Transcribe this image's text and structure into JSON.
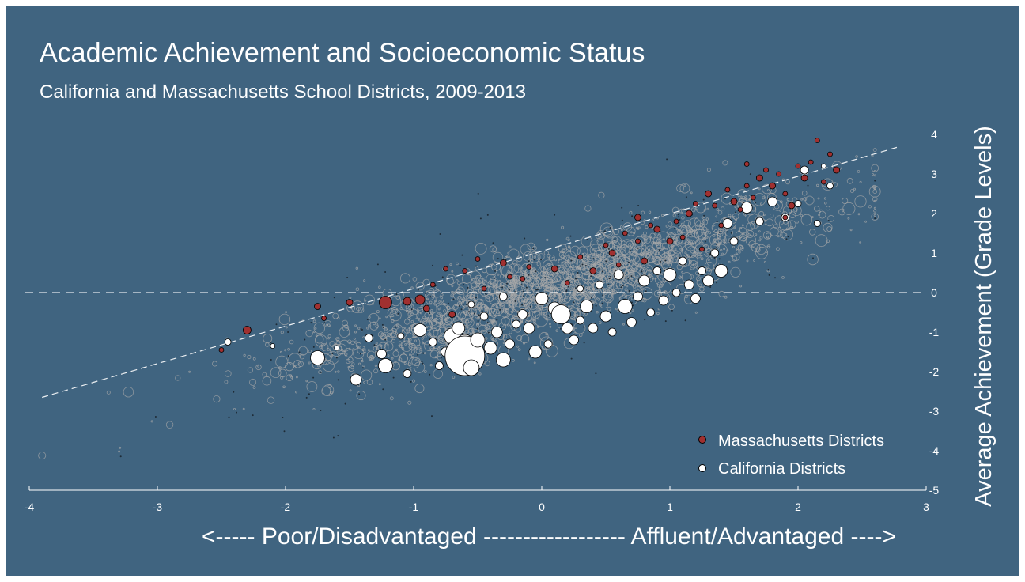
{
  "chart_data": {
    "type": "scatter",
    "title": "Academic Achievement and Socioeconomic Status",
    "subtitle": "California and Massachusetts School Districts, 2009-2013",
    "xlabel": "<----- Poor/Disadvantaged ------------------ Affluent/Advantaged ---->",
    "ylabel": "Average Achievement (Grade Levels)",
    "xlim": [
      -4,
      3
    ],
    "ylim": [
      -5,
      4
    ],
    "x_ticks": [
      -4,
      -3,
      -2,
      -1,
      0,
      1,
      2,
      3
    ],
    "y_ticks": [
      4,
      3,
      2,
      1,
      0,
      -1,
      -2,
      -3,
      -4,
      -5
    ],
    "reference_line_y": 0,
    "trend_line": {
      "x": [
        -3.9,
        2.8
      ],
      "y": [
        -2.65,
        3.7
      ]
    },
    "legend_position": "bottom-right",
    "series": [
      {
        "name": "Massachusetts Districts",
        "color": "#a03030",
        "points": [
          [
            -2.3,
            -0.95,
            5
          ],
          [
            -2.5,
            -1.45,
            3
          ],
          [
            -1.75,
            -0.35,
            4
          ],
          [
            -1.7,
            -0.65,
            3
          ],
          [
            -1.5,
            -0.25,
            4
          ],
          [
            -1.22,
            -0.25,
            8
          ],
          [
            -1.05,
            -0.22,
            5
          ],
          [
            -0.95,
            -0.18,
            6
          ],
          [
            -0.9,
            -0.4,
            4
          ],
          [
            -0.85,
            0.2,
            3
          ],
          [
            -0.7,
            -0.55,
            4
          ],
          [
            -0.75,
            0.6,
            3
          ],
          [
            -0.6,
            0.55,
            3
          ],
          [
            -0.5,
            0.85,
            3
          ],
          [
            -0.45,
            0.1,
            3
          ],
          [
            -0.3,
            0.75,
            4
          ],
          [
            -0.25,
            0.4,
            3
          ],
          [
            -0.15,
            0.35,
            3
          ],
          [
            -0.1,
            0.65,
            3
          ],
          [
            0.1,
            0.6,
            4
          ],
          [
            0.2,
            0.25,
            3
          ],
          [
            0.3,
            0.9,
            3
          ],
          [
            0.4,
            0.55,
            4
          ],
          [
            0.5,
            1.2,
            3
          ],
          [
            0.55,
            1.0,
            4
          ],
          [
            0.6,
            0.7,
            3
          ],
          [
            0.65,
            1.5,
            3
          ],
          [
            0.75,
            1.9,
            4
          ],
          [
            0.75,
            1.3,
            3
          ],
          [
            0.8,
            0.8,
            4
          ],
          [
            0.85,
            1.7,
            3
          ],
          [
            0.9,
            1.6,
            4
          ],
          [
            1.0,
            1.3,
            4
          ],
          [
            1.05,
            1.8,
            3
          ],
          [
            1.1,
            1.4,
            3
          ],
          [
            1.15,
            2.0,
            4
          ],
          [
            1.2,
            2.25,
            3
          ],
          [
            1.25,
            1.1,
            3
          ],
          [
            1.3,
            2.5,
            4
          ],
          [
            1.35,
            2.2,
            3
          ],
          [
            1.4,
            1.7,
            3
          ],
          [
            1.45,
            2.6,
            3
          ],
          [
            1.5,
            2.3,
            4
          ],
          [
            1.55,
            2.1,
            3
          ],
          [
            1.6,
            2.7,
            3
          ],
          [
            1.65,
            2.4,
            3
          ],
          [
            1.7,
            2.9,
            4
          ],
          [
            1.75,
            3.1,
            3
          ],
          [
            1.8,
            2.7,
            4
          ],
          [
            1.85,
            3.0,
            3
          ],
          [
            1.9,
            2.5,
            3
          ],
          [
            1.95,
            2.2,
            4
          ],
          [
            2.0,
            3.2,
            3
          ],
          [
            2.05,
            2.9,
            4
          ],
          [
            2.1,
            3.3,
            3
          ],
          [
            2.15,
            3.85,
            3
          ],
          [
            2.2,
            2.8,
            3
          ],
          [
            2.3,
            3.1,
            4
          ],
          [
            1.6,
            3.25,
            3
          ],
          [
            1.9,
            1.9,
            3
          ],
          [
            2.25,
            3.5,
            3
          ]
        ]
      },
      {
        "name": "California Districts",
        "color": "#ffffff",
        "points": [
          [
            -2.45,
            -1.25,
            4
          ],
          [
            -2.1,
            -1.35,
            3
          ],
          [
            -1.75,
            -1.65,
            9
          ],
          [
            -1.6,
            -1.4,
            3
          ],
          [
            -1.45,
            -2.2,
            7
          ],
          [
            -1.35,
            -1.15,
            5
          ],
          [
            -1.25,
            -1.55,
            6
          ],
          [
            -1.22,
            -1.85,
            9
          ],
          [
            -1.1,
            -1.1,
            4
          ],
          [
            -1.05,
            -2.05,
            5
          ],
          [
            -0.95,
            -0.95,
            8
          ],
          [
            -0.85,
            -1.25,
            5
          ],
          [
            -0.8,
            -1.85,
            5
          ],
          [
            -0.75,
            -1.5,
            6
          ],
          [
            -0.7,
            -1.1,
            10
          ],
          [
            -0.65,
            -0.9,
            8
          ],
          [
            -0.6,
            -1.3,
            12
          ],
          [
            -0.6,
            -1.6,
            25
          ],
          [
            -0.55,
            -1.9,
            10
          ],
          [
            -0.5,
            -1.2,
            9
          ],
          [
            -0.45,
            -0.6,
            5
          ],
          [
            -0.4,
            -1.4,
            8
          ],
          [
            -0.35,
            -1.0,
            7
          ],
          [
            -0.3,
            -1.7,
            9
          ],
          [
            -0.25,
            -1.3,
            6
          ],
          [
            -0.2,
            -0.8,
            5
          ],
          [
            -0.15,
            -0.55,
            6
          ],
          [
            -0.1,
            -0.9,
            7
          ],
          [
            -0.05,
            -1.5,
            8
          ],
          [
            0.0,
            -0.15,
            8
          ],
          [
            0.05,
            -1.3,
            5
          ],
          [
            0.1,
            -0.4,
            8
          ],
          [
            0.15,
            -0.55,
            12
          ],
          [
            0.2,
            -0.9,
            7
          ],
          [
            0.25,
            -1.2,
            6
          ],
          [
            0.3,
            -0.7,
            5
          ],
          [
            0.35,
            -0.35,
            8
          ],
          [
            0.4,
            -0.9,
            6
          ],
          [
            0.45,
            0.2,
            5
          ],
          [
            0.5,
            -0.6,
            7
          ],
          [
            0.55,
            -1.0,
            5
          ],
          [
            0.6,
            0.45,
            6
          ],
          [
            0.65,
            -0.35,
            9
          ],
          [
            0.7,
            -0.75,
            6
          ],
          [
            0.75,
            -0.1,
            6
          ],
          [
            0.8,
            0.3,
            7
          ],
          [
            0.85,
            -0.5,
            5
          ],
          [
            0.9,
            0.55,
            5
          ],
          [
            0.95,
            -0.2,
            6
          ],
          [
            1.0,
            0.45,
            8
          ],
          [
            1.05,
            0.0,
            5
          ],
          [
            1.1,
            0.8,
            5
          ],
          [
            1.15,
            0.2,
            6
          ],
          [
            1.2,
            -0.15,
            6
          ],
          [
            1.25,
            0.55,
            5
          ],
          [
            1.3,
            0.3,
            7
          ],
          [
            1.35,
            1.0,
            5
          ],
          [
            1.4,
            0.55,
            8
          ],
          [
            1.45,
            1.75,
            6
          ],
          [
            1.5,
            1.3,
            5
          ],
          [
            1.6,
            2.15,
            7
          ],
          [
            1.7,
            1.8,
            5
          ],
          [
            1.8,
            2.3,
            6
          ],
          [
            1.9,
            1.9,
            5
          ],
          [
            2.0,
            2.25,
            4
          ],
          [
            2.05,
            3.1,
            5
          ],
          [
            2.15,
            1.75,
            4
          ],
          [
            2.2,
            3.2,
            3
          ],
          [
            2.25,
            2.7,
            4
          ],
          [
            -0.3,
            -0.1,
            5
          ],
          [
            -0.55,
            -0.3,
            4
          ],
          [
            0.3,
            0.1,
            4
          ]
        ]
      }
    ],
    "background_series_note": ""
  },
  "legend": {
    "ma_label": "Massachusetts Districts",
    "ca_label": "California Districts"
  },
  "colors": {
    "background": "#406480",
    "massachusetts": "#a03030",
    "california": "#ffffff",
    "all_districts": "#a8a8a8",
    "axis": "#ffffff"
  }
}
